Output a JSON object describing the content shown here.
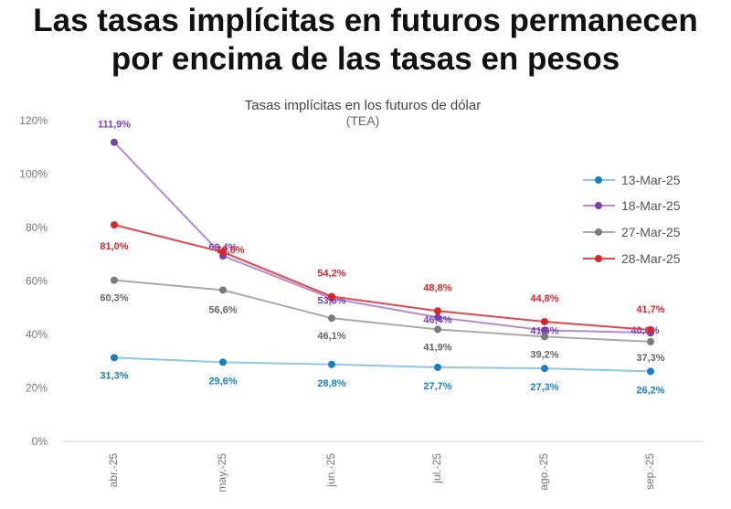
{
  "headline": {
    "line1": "Las tasas implícitas en futuros permanecen",
    "line2": "por encima de las tasas en pesos"
  },
  "chart_data": {
    "type": "line",
    "title": "Tasas implícitas en los futuros de dólar",
    "subtitle": "(TEA)",
    "xlabel": "",
    "ylabel": "",
    "categories": [
      "abr.-25",
      "may.-25",
      "jun.-25",
      "jul.-25",
      "ago.-25",
      "sep.-25"
    ],
    "ylim": [
      0,
      120
    ],
    "yticks": [
      0,
      20,
      40,
      60,
      80,
      100,
      120
    ],
    "ytick_labels": [
      "0%",
      "20%",
      "40%",
      "60%",
      "80%",
      "100%",
      "120%"
    ],
    "grid": false,
    "legend_position": "right",
    "series": [
      {
        "name": "13-Mar-25",
        "color": "#1a7fc1",
        "line_color": "#8fc6e8",
        "label_color": "#1a7fc1",
        "values": [
          31.3,
          29.6,
          28.8,
          27.7,
          27.3,
          26.2
        ],
        "labels": [
          "31,3%",
          "29,6%",
          "28,8%",
          "27,7%",
          "27,3%",
          "26,2%"
        ]
      },
      {
        "name": "18-Mar-25",
        "color": "#7a3fb2",
        "line_color": "#b48ad8",
        "label_color": "#7a3fb2",
        "values": [
          111.9,
          69.4,
          53.5,
          46.4,
          41.6,
          40.6
        ],
        "labels": [
          "111,9%",
          "69,4%",
          "53,5%",
          "46,4%",
          "41,6%",
          "40,6%"
        ]
      },
      {
        "name": "27-Mar-25",
        "color": "#7a7a7a",
        "line_color": "#a8a8a8",
        "label_color": "#666666",
        "values": [
          60.3,
          56.6,
          46.1,
          41.9,
          39.2,
          37.3
        ],
        "labels": [
          "60,3%",
          "56,6%",
          "46,1%",
          "41,9%",
          "39,2%",
          "37,3%"
        ]
      },
      {
        "name": "28-Mar-25",
        "color": "#d8262a",
        "line_color": "#e0484c",
        "label_color": "#d8262a",
        "values": [
          81.0,
          70.8,
          54.2,
          48.8,
          44.8,
          41.7
        ],
        "labels": [
          "81,0%",
          "70,8%",
          "54,2%",
          "48,8%",
          "44,8%",
          "41,7%"
        ]
      }
    ]
  }
}
